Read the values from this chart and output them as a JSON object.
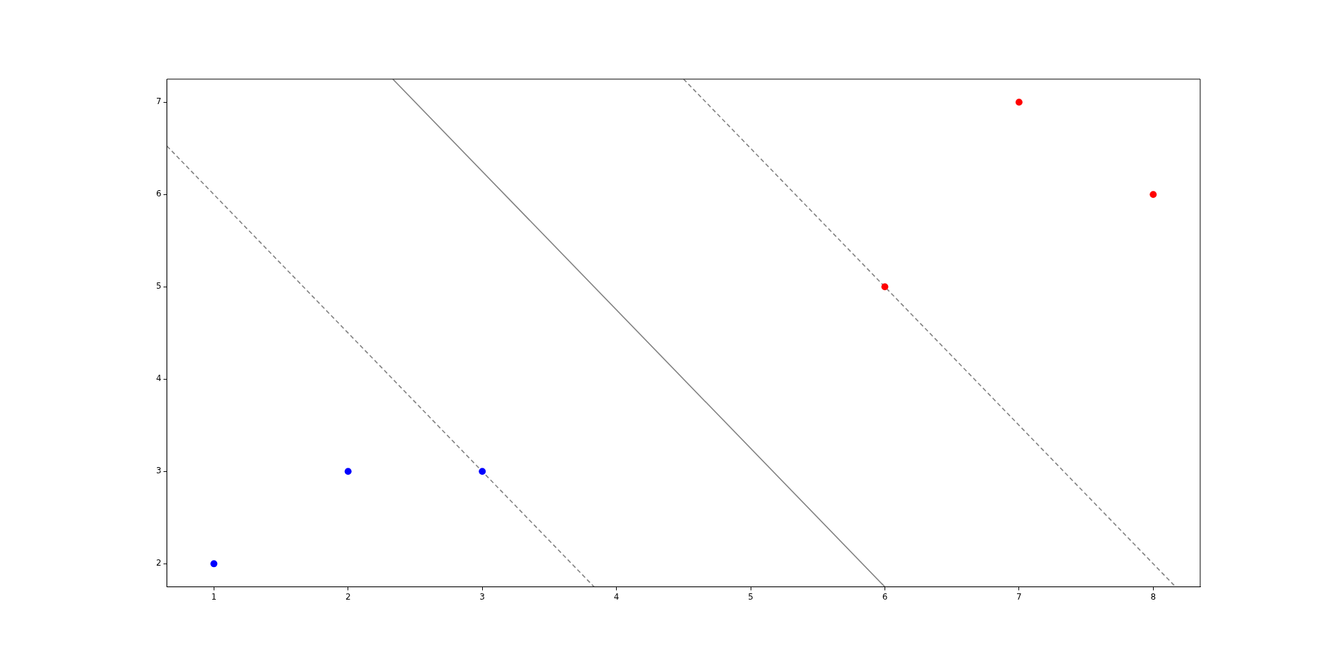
{
  "chart_data": {
    "type": "scatter",
    "xlim": [
      0.65,
      8.35
    ],
    "ylim": [
      1.75,
      7.25
    ],
    "xticks": [
      1,
      2,
      3,
      4,
      5,
      6,
      7,
      8
    ],
    "yticks": [
      2,
      3,
      4,
      5,
      6,
      7
    ],
    "grid": false,
    "legend": false,
    "series": [
      {
        "type": "scatter",
        "color": "#0000ff",
        "marker": "circle",
        "x": [
          1,
          2,
          3
        ],
        "values": [
          2,
          3,
          3
        ]
      },
      {
        "type": "scatter",
        "color": "#ff0000",
        "marker": "circle",
        "x": [
          6,
          7,
          8
        ],
        "values": [
          5,
          7,
          6
        ]
      },
      {
        "type": "line",
        "color": "#808080",
        "line_style": "dashed",
        "marker": "none",
        "x": [
          0.65,
          3.8333
        ],
        "values": [
          6.525,
          1.75
        ]
      },
      {
        "type": "line",
        "color": "#808080",
        "line_style": "solid",
        "marker": "none",
        "x": [
          2.3333,
          6
        ],
        "values": [
          7.25,
          1.75
        ]
      },
      {
        "type": "line",
        "color": "#808080",
        "line_style": "dashed",
        "marker": "none",
        "x": [
          4.5,
          8.1667
        ],
        "values": [
          7.25,
          1.75
        ]
      }
    ]
  }
}
